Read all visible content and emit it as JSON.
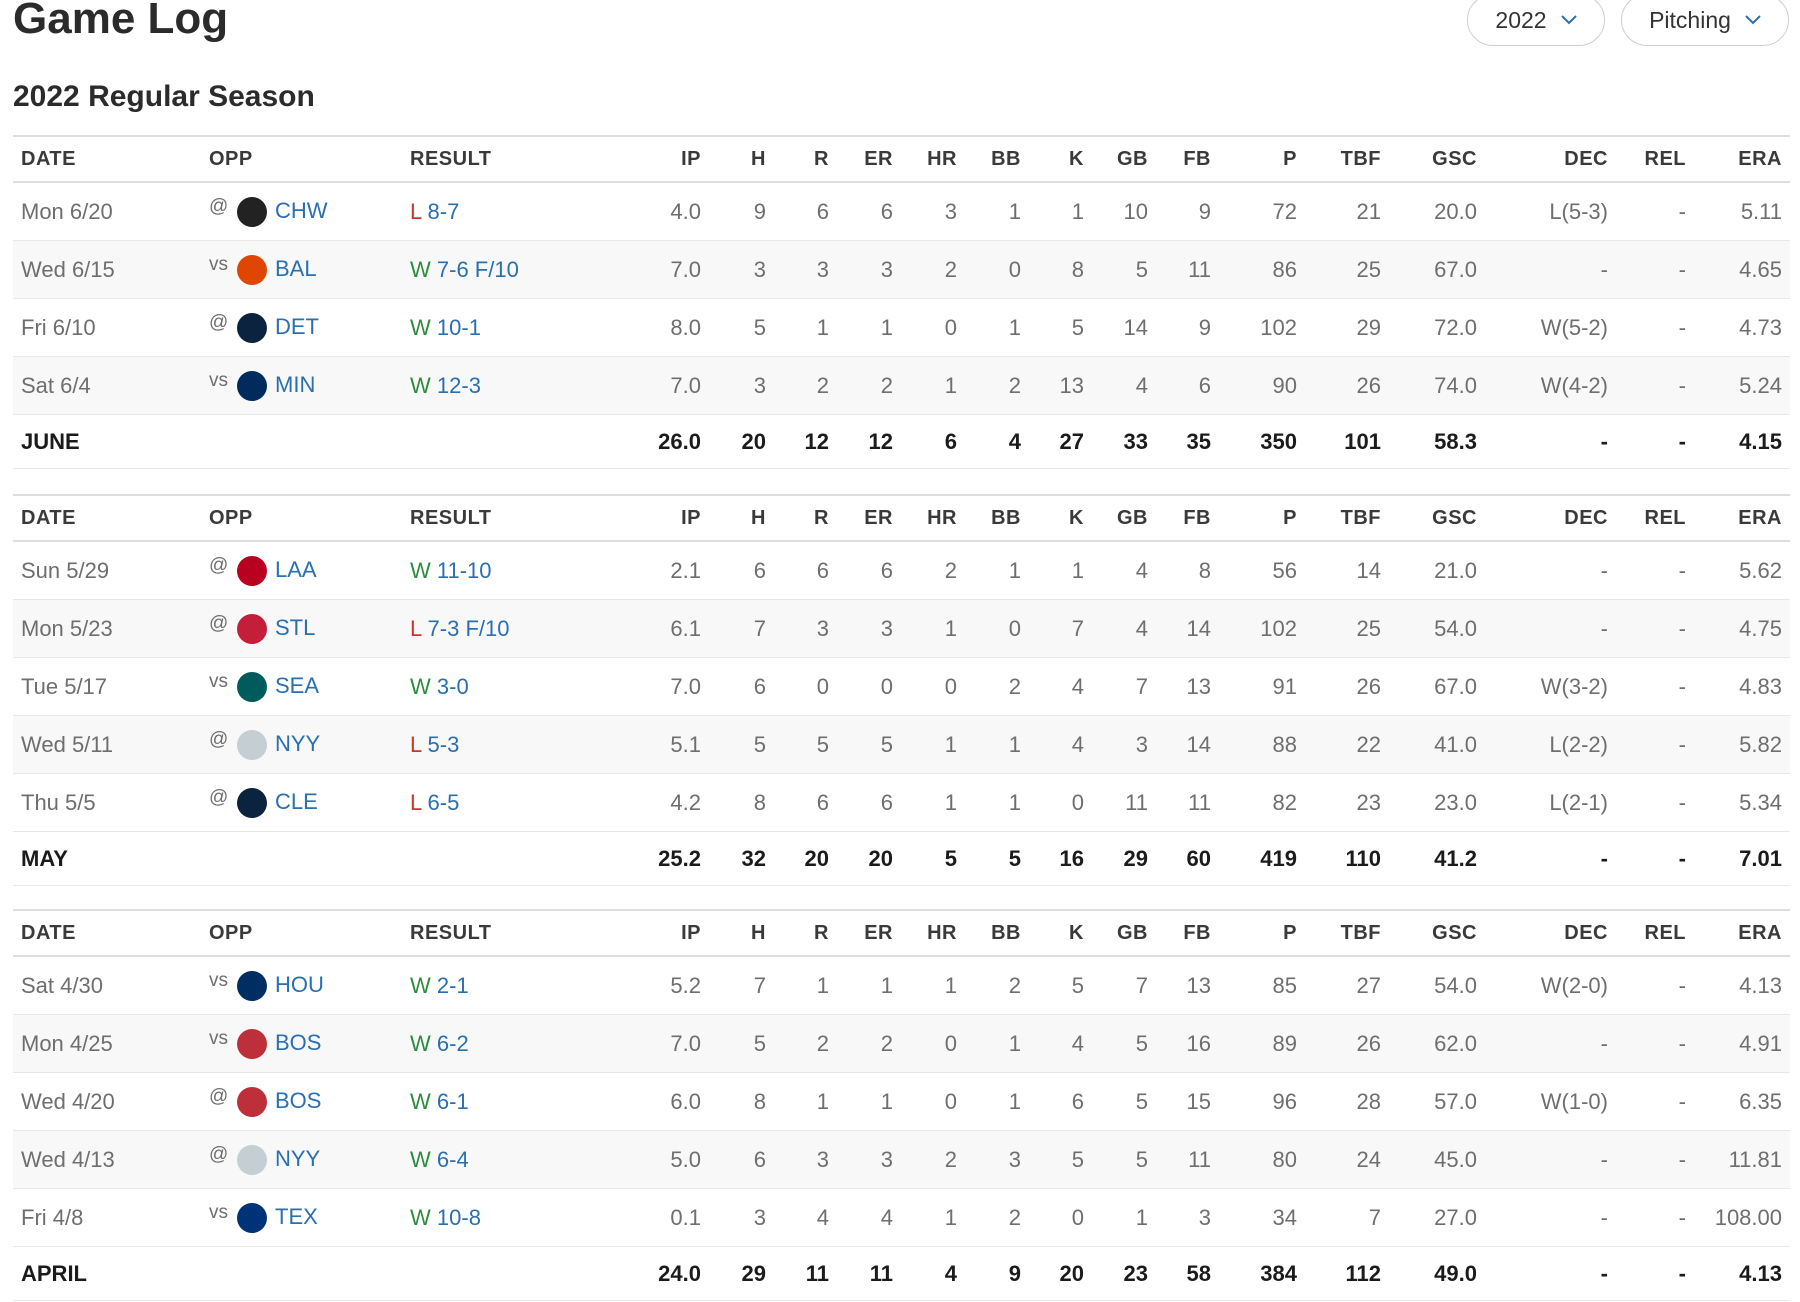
{
  "header": {
    "title": "Game Log",
    "season_select": "2022",
    "stat_select": "Pitching"
  },
  "section_title": "2022 Regular Season",
  "columns": [
    "DATE",
    "OPP",
    "RESULT",
    "IP",
    "H",
    "R",
    "ER",
    "HR",
    "BB",
    "K",
    "GB",
    "FB",
    "P",
    "TBF",
    "GSC",
    "DEC",
    "REL",
    "ERA"
  ],
  "tables": [
    {
      "rows": [
        {
          "date": "Mon 6/20",
          "loc": "@",
          "opp": "CHW",
          "result": "L",
          "score": "8-7",
          "stats": [
            "4.0",
            "9",
            "6",
            "6",
            "3",
            "1",
            "1",
            "10",
            "9",
            "72",
            "21",
            "20.0",
            "L(5-3)",
            "-",
            "5.11"
          ]
        },
        {
          "date": "Wed 6/15",
          "loc": "vs",
          "opp": "BAL",
          "result": "W",
          "score": "7-6 F/10",
          "stats": [
            "7.0",
            "3",
            "3",
            "3",
            "2",
            "0",
            "8",
            "5",
            "11",
            "86",
            "25",
            "67.0",
            "-",
            "-",
            "4.65"
          ]
        },
        {
          "date": "Fri 6/10",
          "loc": "@",
          "opp": "DET",
          "result": "W",
          "score": "10-1",
          "stats": [
            "8.0",
            "5",
            "1",
            "1",
            "0",
            "1",
            "5",
            "14",
            "9",
            "102",
            "29",
            "72.0",
            "W(5-2)",
            "-",
            "4.73"
          ]
        },
        {
          "date": "Sat 6/4",
          "loc": "vs",
          "opp": "MIN",
          "result": "W",
          "score": "12-3",
          "stats": [
            "7.0",
            "3",
            "2",
            "2",
            "1",
            "2",
            "13",
            "4",
            "6",
            "90",
            "26",
            "74.0",
            "W(4-2)",
            "-",
            "5.24"
          ]
        }
      ],
      "summary": {
        "label": "JUNE",
        "stats": [
          "26.0",
          "20",
          "12",
          "12",
          "6",
          "4",
          "27",
          "33",
          "35",
          "350",
          "101",
          "58.3",
          "-",
          "-",
          "4.15"
        ]
      }
    },
    {
      "rows": [
        {
          "date": "Sun 5/29",
          "loc": "@",
          "opp": "LAA",
          "result": "W",
          "score": "11-10",
          "stats": [
            "2.1",
            "6",
            "6",
            "6",
            "2",
            "1",
            "1",
            "4",
            "8",
            "56",
            "14",
            "21.0",
            "-",
            "-",
            "5.62"
          ]
        },
        {
          "date": "Mon 5/23",
          "loc": "@",
          "opp": "STL",
          "result": "L",
          "score": "7-3 F/10",
          "stats": [
            "6.1",
            "7",
            "3",
            "3",
            "1",
            "0",
            "7",
            "4",
            "14",
            "102",
            "25",
            "54.0",
            "-",
            "-",
            "4.75"
          ]
        },
        {
          "date": "Tue 5/17",
          "loc": "vs",
          "opp": "SEA",
          "result": "W",
          "score": "3-0",
          "stats": [
            "7.0",
            "6",
            "0",
            "0",
            "0",
            "2",
            "4",
            "7",
            "13",
            "91",
            "26",
            "67.0",
            "W(3-2)",
            "-",
            "4.83"
          ]
        },
        {
          "date": "Wed 5/11",
          "loc": "@",
          "opp": "NYY",
          "result": "L",
          "score": "5-3",
          "stats": [
            "5.1",
            "5",
            "5",
            "5",
            "1",
            "1",
            "4",
            "3",
            "14",
            "88",
            "22",
            "41.0",
            "L(2-2)",
            "-",
            "5.82"
          ]
        },
        {
          "date": "Thu 5/5",
          "loc": "@",
          "opp": "CLE",
          "result": "L",
          "score": "6-5",
          "stats": [
            "4.2",
            "8",
            "6",
            "6",
            "1",
            "1",
            "0",
            "11",
            "11",
            "82",
            "23",
            "23.0",
            "L(2-1)",
            "-",
            "5.34"
          ]
        }
      ],
      "summary": {
        "label": "MAY",
        "stats": [
          "25.2",
          "32",
          "20",
          "20",
          "5",
          "5",
          "16",
          "29",
          "60",
          "419",
          "110",
          "41.2",
          "-",
          "-",
          "7.01"
        ]
      }
    },
    {
      "rows": [
        {
          "date": "Sat 4/30",
          "loc": "vs",
          "opp": "HOU",
          "result": "W",
          "score": "2-1",
          "stats": [
            "5.2",
            "7",
            "1",
            "1",
            "1",
            "2",
            "5",
            "7",
            "13",
            "85",
            "27",
            "54.0",
            "W(2-0)",
            "-",
            "4.13"
          ]
        },
        {
          "date": "Mon 4/25",
          "loc": "vs",
          "opp": "BOS",
          "result": "W",
          "score": "6-2",
          "stats": [
            "7.0",
            "5",
            "2",
            "2",
            "0",
            "1",
            "4",
            "5",
            "16",
            "89",
            "26",
            "62.0",
            "-",
            "-",
            "4.91"
          ]
        },
        {
          "date": "Wed 4/20",
          "loc": "@",
          "opp": "BOS",
          "result": "W",
          "score": "6-1",
          "stats": [
            "6.0",
            "8",
            "1",
            "1",
            "0",
            "1",
            "6",
            "5",
            "15",
            "96",
            "28",
            "57.0",
            "W(1-0)",
            "-",
            "6.35"
          ]
        },
        {
          "date": "Wed 4/13",
          "loc": "@",
          "opp": "NYY",
          "result": "W",
          "score": "6-4",
          "stats": [
            "5.0",
            "6",
            "3",
            "3",
            "2",
            "3",
            "5",
            "5",
            "11",
            "80",
            "24",
            "45.0",
            "-",
            "-",
            "11.81"
          ]
        },
        {
          "date": "Fri 4/8",
          "loc": "vs",
          "opp": "TEX",
          "result": "W",
          "score": "10-8",
          "stats": [
            "0.1",
            "3",
            "4",
            "4",
            "1",
            "2",
            "0",
            "1",
            "3",
            "34",
            "7",
            "27.0",
            "-",
            "-",
            "108.00"
          ]
        }
      ],
      "summary": {
        "label": "APRIL",
        "stats": [
          "24.0",
          "29",
          "11",
          "11",
          "4",
          "9",
          "20",
          "23",
          "58",
          "384",
          "112",
          "49.0",
          "-",
          "-",
          "4.13"
        ]
      }
    }
  ]
}
